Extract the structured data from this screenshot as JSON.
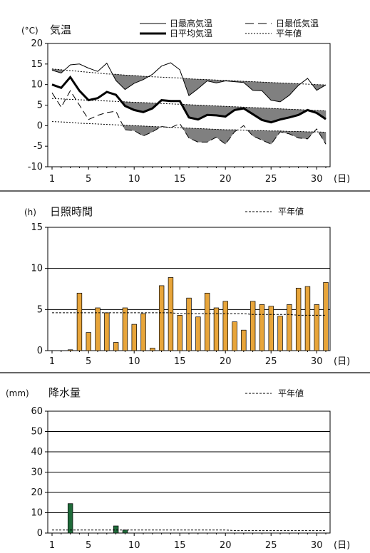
{
  "chart_data": [
    {
      "type": "line",
      "title": "気温",
      "ylabel": "(°C)",
      "xlabel": "(日)",
      "xlim": [
        1,
        31
      ],
      "ylim": [
        -10,
        20
      ],
      "yticks": [
        -10,
        -5,
        0,
        5,
        10,
        15,
        20
      ],
      "xticks": [
        1,
        5,
        10,
        15,
        20,
        25,
        30
      ],
      "x": [
        1,
        2,
        3,
        4,
        5,
        6,
        7,
        8,
        9,
        10,
        11,
        12,
        13,
        14,
        15,
        16,
        17,
        18,
        19,
        20,
        21,
        22,
        23,
        24,
        25,
        26,
        27,
        28,
        29,
        30,
        31
      ],
      "legend": [
        "日最高気温",
        "日最低気温",
        "日平均気温",
        "平年値"
      ],
      "series": [
        {
          "name": "日最高気温",
          "style": "thin-solid",
          "values": [
            13.5,
            12.8,
            14.8,
            15.0,
            14.0,
            13.2,
            15.2,
            11.0,
            8.8,
            10.3,
            11.2,
            12.5,
            14.5,
            15.3,
            13.6,
            7.3,
            9.0,
            10.9,
            10.4,
            10.9,
            10.7,
            10.5,
            8.6,
            8.5,
            6.2,
            5.8,
            7.4,
            9.8,
            11.5,
            8.6,
            9.9
          ]
        },
        {
          "name": "日最低気温",
          "style": "thin-dashed",
          "values": [
            8.0,
            4.5,
            8.5,
            5.0,
            1.5,
            2.5,
            3.2,
            3.5,
            -1.0,
            -1.2,
            -2.5,
            -1.5,
            -0.2,
            -0.5,
            0.5,
            -3.0,
            -4.0,
            -4.0,
            -2.8,
            -4.5,
            -1.5,
            0.0,
            -2.5,
            -3.5,
            -4.5,
            -1.5,
            -2.0,
            -3.0,
            -3.2,
            -0.8,
            -4.5
          ]
        },
        {
          "name": "日平均気温",
          "style": "thick-solid",
          "values": [
            10.0,
            9.2,
            11.8,
            8.5,
            6.2,
            6.7,
            8.2,
            7.5,
            4.8,
            3.8,
            3.3,
            4.2,
            6.2,
            6.0,
            6.0,
            2.0,
            1.5,
            2.6,
            2.5,
            2.2,
            3.8,
            4.2,
            2.8,
            1.4,
            0.8,
            1.5,
            2.0,
            2.6,
            3.8,
            3.1,
            1.6
          ]
        },
        {
          "name": "平年値",
          "style": "dotted",
          "values": [
            13.8,
            13.6,
            13.4,
            13.2,
            13.0,
            12.8,
            12.6,
            12.5,
            12.3,
            12.2,
            12.0,
            11.9,
            11.8,
            11.7,
            11.6,
            11.4,
            11.3,
            11.2,
            11.1,
            11.0,
            10.9,
            10.8,
            10.7,
            10.6,
            10.5,
            10.4,
            10.3,
            10.2,
            10.1,
            10.0,
            9.9
          ]
        },
        {
          "name": "平年値",
          "style": "dotted",
          "values": [
            6.6,
            6.5,
            6.4,
            6.3,
            6.2,
            6.1,
            6.0,
            5.9,
            5.8,
            5.7,
            5.6,
            5.5,
            5.4,
            5.3,
            5.2,
            5.1,
            5.0,
            4.9,
            4.8,
            4.7,
            4.6,
            4.5,
            4.4,
            4.3,
            4.2,
            4.1,
            4.0,
            3.9,
            3.8,
            3.7,
            3.6
          ]
        },
        {
          "name": "平年値",
          "style": "dotted",
          "values": [
            1.0,
            0.9,
            0.8,
            0.6,
            0.5,
            0.4,
            0.3,
            0.2,
            0.1,
            0.0,
            -0.1,
            -0.2,
            -0.3,
            -0.4,
            -0.5,
            -0.6,
            -0.7,
            -0.8,
            -0.9,
            -1.0,
            -1.0,
            -1.1,
            -1.2,
            -1.2,
            -1.3,
            -1.3,
            -1.4,
            -1.4,
            -1.5,
            -1.5,
            -1.6
          ]
        }
      ]
    },
    {
      "type": "bar",
      "title": "日照時間",
      "ylabel": "(h)",
      "xlabel": "(日)",
      "ylim": [
        0,
        15
      ],
      "yticks": [
        0,
        5,
        10,
        15
      ],
      "xticks": [
        1,
        5,
        10,
        15,
        20,
        25,
        30
      ],
      "legend": [
        "平年値"
      ],
      "categories": [
        1,
        2,
        3,
        4,
        5,
        6,
        7,
        8,
        9,
        10,
        11,
        12,
        13,
        14,
        15,
        16,
        17,
        18,
        19,
        20,
        21,
        22,
        23,
        24,
        25,
        26,
        27,
        28,
        29,
        30,
        31
      ],
      "values": [
        0.0,
        0.0,
        0.1,
        7.0,
        2.2,
        5.2,
        4.6,
        1.0,
        5.2,
        3.2,
        4.5,
        0.3,
        7.9,
        8.9,
        4.3,
        6.4,
        4.1,
        7.0,
        5.2,
        6.0,
        3.5,
        2.5,
        6.0,
        5.6,
        5.4,
        4.2,
        5.6,
        7.6,
        7.8,
        5.6,
        8.3
      ],
      "normal": [
        4.6,
        4.6,
        4.6,
        4.6,
        4.6,
        4.6,
        4.6,
        4.6,
        4.6,
        4.6,
        4.6,
        4.6,
        4.6,
        4.6,
        4.5,
        4.5,
        4.5,
        4.5,
        4.5,
        4.5,
        4.5,
        4.5,
        4.4,
        4.4,
        4.4,
        4.4,
        4.4,
        4.3,
        4.3,
        4.3,
        4.3
      ],
      "bar_color": "#e8a53a",
      "grid": true
    },
    {
      "type": "bar",
      "title": "降水量",
      "ylabel": "(mm)",
      "xlabel": "(日)",
      "ylim": [
        0,
        60
      ],
      "yticks": [
        0,
        10,
        20,
        30,
        40,
        50,
        60
      ],
      "xticks": [
        1,
        5,
        10,
        15,
        20,
        25,
        30
      ],
      "legend": [
        "平年値"
      ],
      "categories": [
        1,
        2,
        3,
        4,
        5,
        6,
        7,
        8,
        9,
        10,
        11,
        12,
        13,
        14,
        15,
        16,
        17,
        18,
        19,
        20,
        21,
        22,
        23,
        24,
        25,
        26,
        27,
        28,
        29,
        30,
        31
      ],
      "values": [
        0,
        0,
        14.5,
        0,
        0,
        0,
        0,
        3.5,
        1.5,
        0,
        0,
        0,
        0,
        0,
        0,
        0,
        0,
        0,
        0,
        0,
        0,
        0,
        0,
        0,
        0,
        0,
        0,
        0,
        0,
        0,
        0
      ],
      "normal": [
        1.5,
        1.5,
        1.5,
        1.5,
        1.5,
        1.5,
        1.5,
        1.5,
        1.5,
        1.5,
        1.5,
        1.5,
        1.5,
        1.5,
        1.5,
        1.5,
        1.5,
        1.5,
        1.5,
        1.5,
        1.2,
        1.2,
        1.2,
        1.2,
        1.2,
        1.2,
        1.2,
        1.2,
        1.2,
        1.2,
        1.2
      ],
      "bar_color": "#1f6b3a",
      "grid": true
    }
  ],
  "colors": {
    "shade": "#808080",
    "line": "#000000",
    "frame": "#000000"
  }
}
